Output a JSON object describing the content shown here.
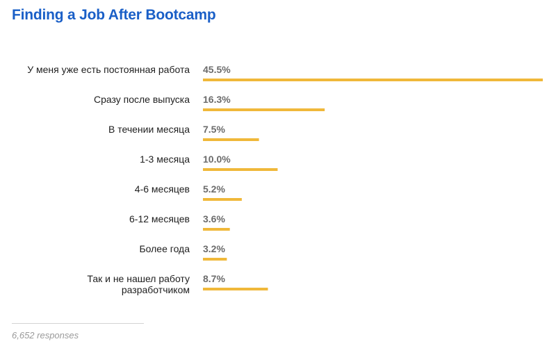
{
  "title": "Finding a Job After Bootcamp",
  "responses": "6,652 responses",
  "colors": {
    "title": "#1a5fc7",
    "bar": "#f0b83a",
    "value_text": "#6b6b6b"
  },
  "chart_data": {
    "type": "bar",
    "orientation": "horizontal",
    "categories": [
      [
        "У меня уже есть постоянная работа"
      ],
      [
        "Сразу после выпуска"
      ],
      [
        "В течении месяца"
      ],
      [
        "1-3 месяца"
      ],
      [
        "4-6 месяцев"
      ],
      [
        "6-12 месяцев"
      ],
      [
        "Более года"
      ],
      [
        "Так и не нашел работу",
        "разработчиком"
      ]
    ],
    "values": [
      45.5,
      16.3,
      7.5,
      10.0,
      5.2,
      3.6,
      3.2,
      8.7
    ],
    "value_labels": [
      "45.5%",
      "16.3%",
      "7.5%",
      "10.0%",
      "5.2%",
      "3.6%",
      "3.2%",
      "8.7%"
    ],
    "unit": "%",
    "xlim": [
      0,
      45.5
    ],
    "grid": false,
    "legend": "none"
  }
}
